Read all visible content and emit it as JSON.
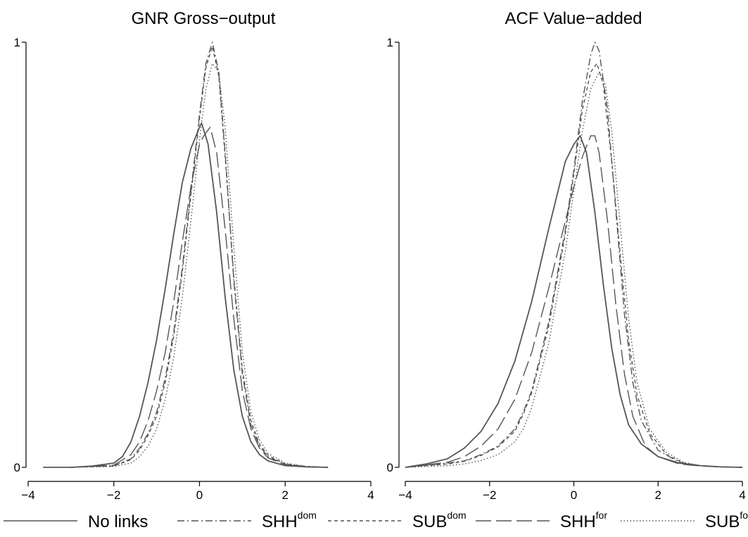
{
  "chart_data": [
    {
      "type": "line",
      "title": "GNR Gross−output",
      "xlim": [
        -4,
        4
      ],
      "ylim": [
        0,
        1
      ],
      "x_ticks": [
        -4,
        -2,
        0,
        2,
        4
      ],
      "x_tick_labels": [
        "−4",
        "−2",
        "0",
        "2",
        "4"
      ],
      "y_ticks": [
        0,
        1
      ],
      "y_tick_labels": [
        "0",
        "1"
      ],
      "grid": false,
      "series": [
        {
          "name": "No links",
          "x": [
            -3.65,
            -3.0,
            -2.5,
            -2.0,
            -1.8,
            -1.6,
            -1.4,
            -1.2,
            -1.0,
            -0.8,
            -0.6,
            -0.4,
            -0.2,
            0.0,
            0.05,
            0.2,
            0.4,
            0.6,
            0.8,
            1.0,
            1.2,
            1.4,
            1.6,
            2.0,
            2.5,
            3.0
          ],
          "y": [
            0.0,
            0.0,
            0.003,
            0.01,
            0.025,
            0.06,
            0.12,
            0.2,
            0.3,
            0.42,
            0.55,
            0.67,
            0.75,
            0.8,
            0.81,
            0.76,
            0.6,
            0.4,
            0.23,
            0.12,
            0.06,
            0.03,
            0.015,
            0.004,
            0.001,
            0.0
          ]
        },
        {
          "name": "SHH",
          "x": [
            -3.0,
            -2.0,
            -1.6,
            -1.4,
            -1.2,
            -1.0,
            -0.8,
            -0.6,
            -0.4,
            -0.2,
            0.0,
            0.15,
            0.3,
            0.45,
            0.6,
            0.8,
            1.0,
            1.2,
            1.4,
            1.6,
            2.0,
            2.5,
            3.0
          ],
          "y": [
            0.0,
            0.004,
            0.02,
            0.045,
            0.08,
            0.13,
            0.21,
            0.32,
            0.47,
            0.65,
            0.83,
            0.95,
            1.0,
            0.93,
            0.74,
            0.44,
            0.22,
            0.1,
            0.05,
            0.025,
            0.007,
            0.002,
            0.0
          ]
        },
        {
          "name": "SUB",
          "x": [
            -3.0,
            -2.0,
            -1.6,
            -1.4,
            -1.2,
            -1.0,
            -0.8,
            -0.6,
            -0.4,
            -0.2,
            0.0,
            0.15,
            0.3,
            0.45,
            0.6,
            0.8,
            1.0,
            1.2,
            1.4,
            1.6,
            2.0,
            2.5,
            3.0
          ],
          "y": [
            0.0,
            0.003,
            0.018,
            0.04,
            0.075,
            0.12,
            0.2,
            0.31,
            0.46,
            0.64,
            0.82,
            0.94,
            0.99,
            0.92,
            0.73,
            0.45,
            0.23,
            0.11,
            0.055,
            0.028,
            0.008,
            0.002,
            0.0
          ]
        },
        {
          "name": "SHH",
          "x": [
            -3.0,
            -2.0,
            -1.6,
            -1.4,
            -1.2,
            -1.0,
            -0.8,
            -0.6,
            -0.4,
            -0.2,
            0.0,
            0.1,
            0.25,
            0.4,
            0.6,
            0.8,
            1.0,
            1.2,
            1.4,
            1.6,
            2.0,
            2.5,
            3.0
          ],
          "y": [
            0.0,
            0.005,
            0.03,
            0.06,
            0.11,
            0.18,
            0.27,
            0.39,
            0.53,
            0.66,
            0.76,
            0.78,
            0.8,
            0.74,
            0.56,
            0.35,
            0.18,
            0.09,
            0.045,
            0.022,
            0.006,
            0.001,
            0.0
          ]
        },
        {
          "name": "SUB",
          "x": [
            -3.0,
            -2.0,
            -1.6,
            -1.4,
            -1.2,
            -1.0,
            -0.8,
            -0.6,
            -0.4,
            -0.2,
            0.0,
            0.15,
            0.3,
            0.45,
            0.6,
            0.8,
            1.0,
            1.2,
            1.4,
            1.6,
            2.0,
            2.5,
            3.0
          ],
          "y": [
            0.0,
            0.002,
            0.01,
            0.025,
            0.05,
            0.09,
            0.16,
            0.26,
            0.4,
            0.58,
            0.77,
            0.89,
            0.95,
            0.93,
            0.8,
            0.52,
            0.27,
            0.13,
            0.065,
            0.033,
            0.01,
            0.002,
            0.0
          ]
        }
      ]
    },
    {
      "type": "line",
      "title": "ACF Value−added",
      "xlim": [
        -4,
        4
      ],
      "ylim": [
        0,
        1
      ],
      "x_ticks": [
        -4,
        -2,
        0,
        2,
        4
      ],
      "x_tick_labels": [
        "−4",
        "−2",
        "0",
        "2",
        "4"
      ],
      "y_ticks": [
        0,
        1
      ],
      "y_tick_labels": [
        "0",
        "1"
      ],
      "grid": false,
      "series": [
        {
          "name": "No links",
          "x": [
            -4.0,
            -3.5,
            -3.0,
            -2.6,
            -2.2,
            -1.8,
            -1.4,
            -1.0,
            -0.6,
            -0.2,
            0.0,
            0.15,
            0.3,
            0.5,
            0.7,
            0.9,
            1.1,
            1.3,
            1.6,
            2.0,
            2.5,
            3.0,
            3.5,
            4.0
          ],
          "y": [
            0.0,
            0.008,
            0.02,
            0.045,
            0.085,
            0.15,
            0.25,
            0.39,
            0.56,
            0.72,
            0.76,
            0.78,
            0.74,
            0.6,
            0.43,
            0.28,
            0.17,
            0.1,
            0.055,
            0.025,
            0.01,
            0.004,
            0.001,
            0.0
          ]
        },
        {
          "name": "SHH",
          "x": [
            -4.0,
            -3.0,
            -2.6,
            -2.2,
            -1.8,
            -1.4,
            -1.2,
            -1.0,
            -0.6,
            -0.2,
            0.0,
            0.2,
            0.4,
            0.5,
            0.6,
            0.8,
            1.0,
            1.2,
            1.4,
            1.6,
            2.0,
            2.5,
            3.0,
            3.5,
            4.0
          ],
          "y": [
            0.0,
            0.01,
            0.015,
            0.03,
            0.05,
            0.09,
            0.13,
            0.18,
            0.34,
            0.56,
            0.7,
            0.86,
            0.97,
            1.0,
            0.98,
            0.84,
            0.6,
            0.36,
            0.2,
            0.11,
            0.04,
            0.012,
            0.004,
            0.001,
            0.0
          ]
        },
        {
          "name": "SUB",
          "x": [
            -4.0,
            -3.0,
            -2.6,
            -2.2,
            -1.8,
            -1.4,
            -1.2,
            -1.0,
            -0.6,
            -0.2,
            0.0,
            0.2,
            0.4,
            0.55,
            0.7,
            0.9,
            1.1,
            1.3,
            1.5,
            1.8,
            2.2,
            2.6,
            3.0,
            3.5,
            4.0
          ],
          "y": [
            0.0,
            0.008,
            0.014,
            0.028,
            0.048,
            0.085,
            0.125,
            0.175,
            0.33,
            0.55,
            0.69,
            0.84,
            0.93,
            0.95,
            0.9,
            0.72,
            0.5,
            0.3,
            0.17,
            0.08,
            0.03,
            0.01,
            0.004,
            0.001,
            0.0
          ]
        },
        {
          "name": "SHH",
          "x": [
            -4.0,
            -3.0,
            -2.6,
            -2.2,
            -1.8,
            -1.4,
            -1.0,
            -0.6,
            -0.2,
            0.0,
            0.2,
            0.4,
            0.5,
            0.6,
            0.8,
            1.0,
            1.2,
            1.4,
            1.7,
            2.0,
            2.5,
            3.0,
            3.5,
            4.0
          ],
          "y": [
            0.0,
            0.012,
            0.025,
            0.05,
            0.09,
            0.16,
            0.27,
            0.42,
            0.58,
            0.66,
            0.73,
            0.78,
            0.78,
            0.74,
            0.58,
            0.38,
            0.22,
            0.12,
            0.05,
            0.025,
            0.008,
            0.003,
            0.001,
            0.0
          ]
        },
        {
          "name": "SUB",
          "x": [
            -4.0,
            -3.0,
            -2.6,
            -2.2,
            -1.8,
            -1.4,
            -1.2,
            -1.0,
            -0.6,
            -0.2,
            0.0,
            0.2,
            0.4,
            0.6,
            0.75,
            0.9,
            1.1,
            1.3,
            1.5,
            1.8,
            2.2,
            2.6,
            3.0,
            3.5,
            4.0
          ],
          "y": [
            0.0,
            0.004,
            0.008,
            0.016,
            0.03,
            0.06,
            0.09,
            0.14,
            0.29,
            0.51,
            0.65,
            0.79,
            0.89,
            0.93,
            0.9,
            0.79,
            0.57,
            0.35,
            0.2,
            0.09,
            0.035,
            0.012,
            0.004,
            0.001,
            0.0
          ]
        }
      ]
    }
  ],
  "legend": {
    "position": "bottom",
    "items": [
      {
        "label": "No links",
        "sup": "",
        "style": "solid"
      },
      {
        "label": "SHH",
        "sup": "dom",
        "style": "dashdot"
      },
      {
        "label": "SUB",
        "sup": "dom",
        "style": "shortdash"
      },
      {
        "label": "SHH",
        "sup": "for",
        "style": "longdash"
      },
      {
        "label": "SUB",
        "sup": "for",
        "style": "dotted"
      }
    ]
  },
  "line_color": "#555555"
}
